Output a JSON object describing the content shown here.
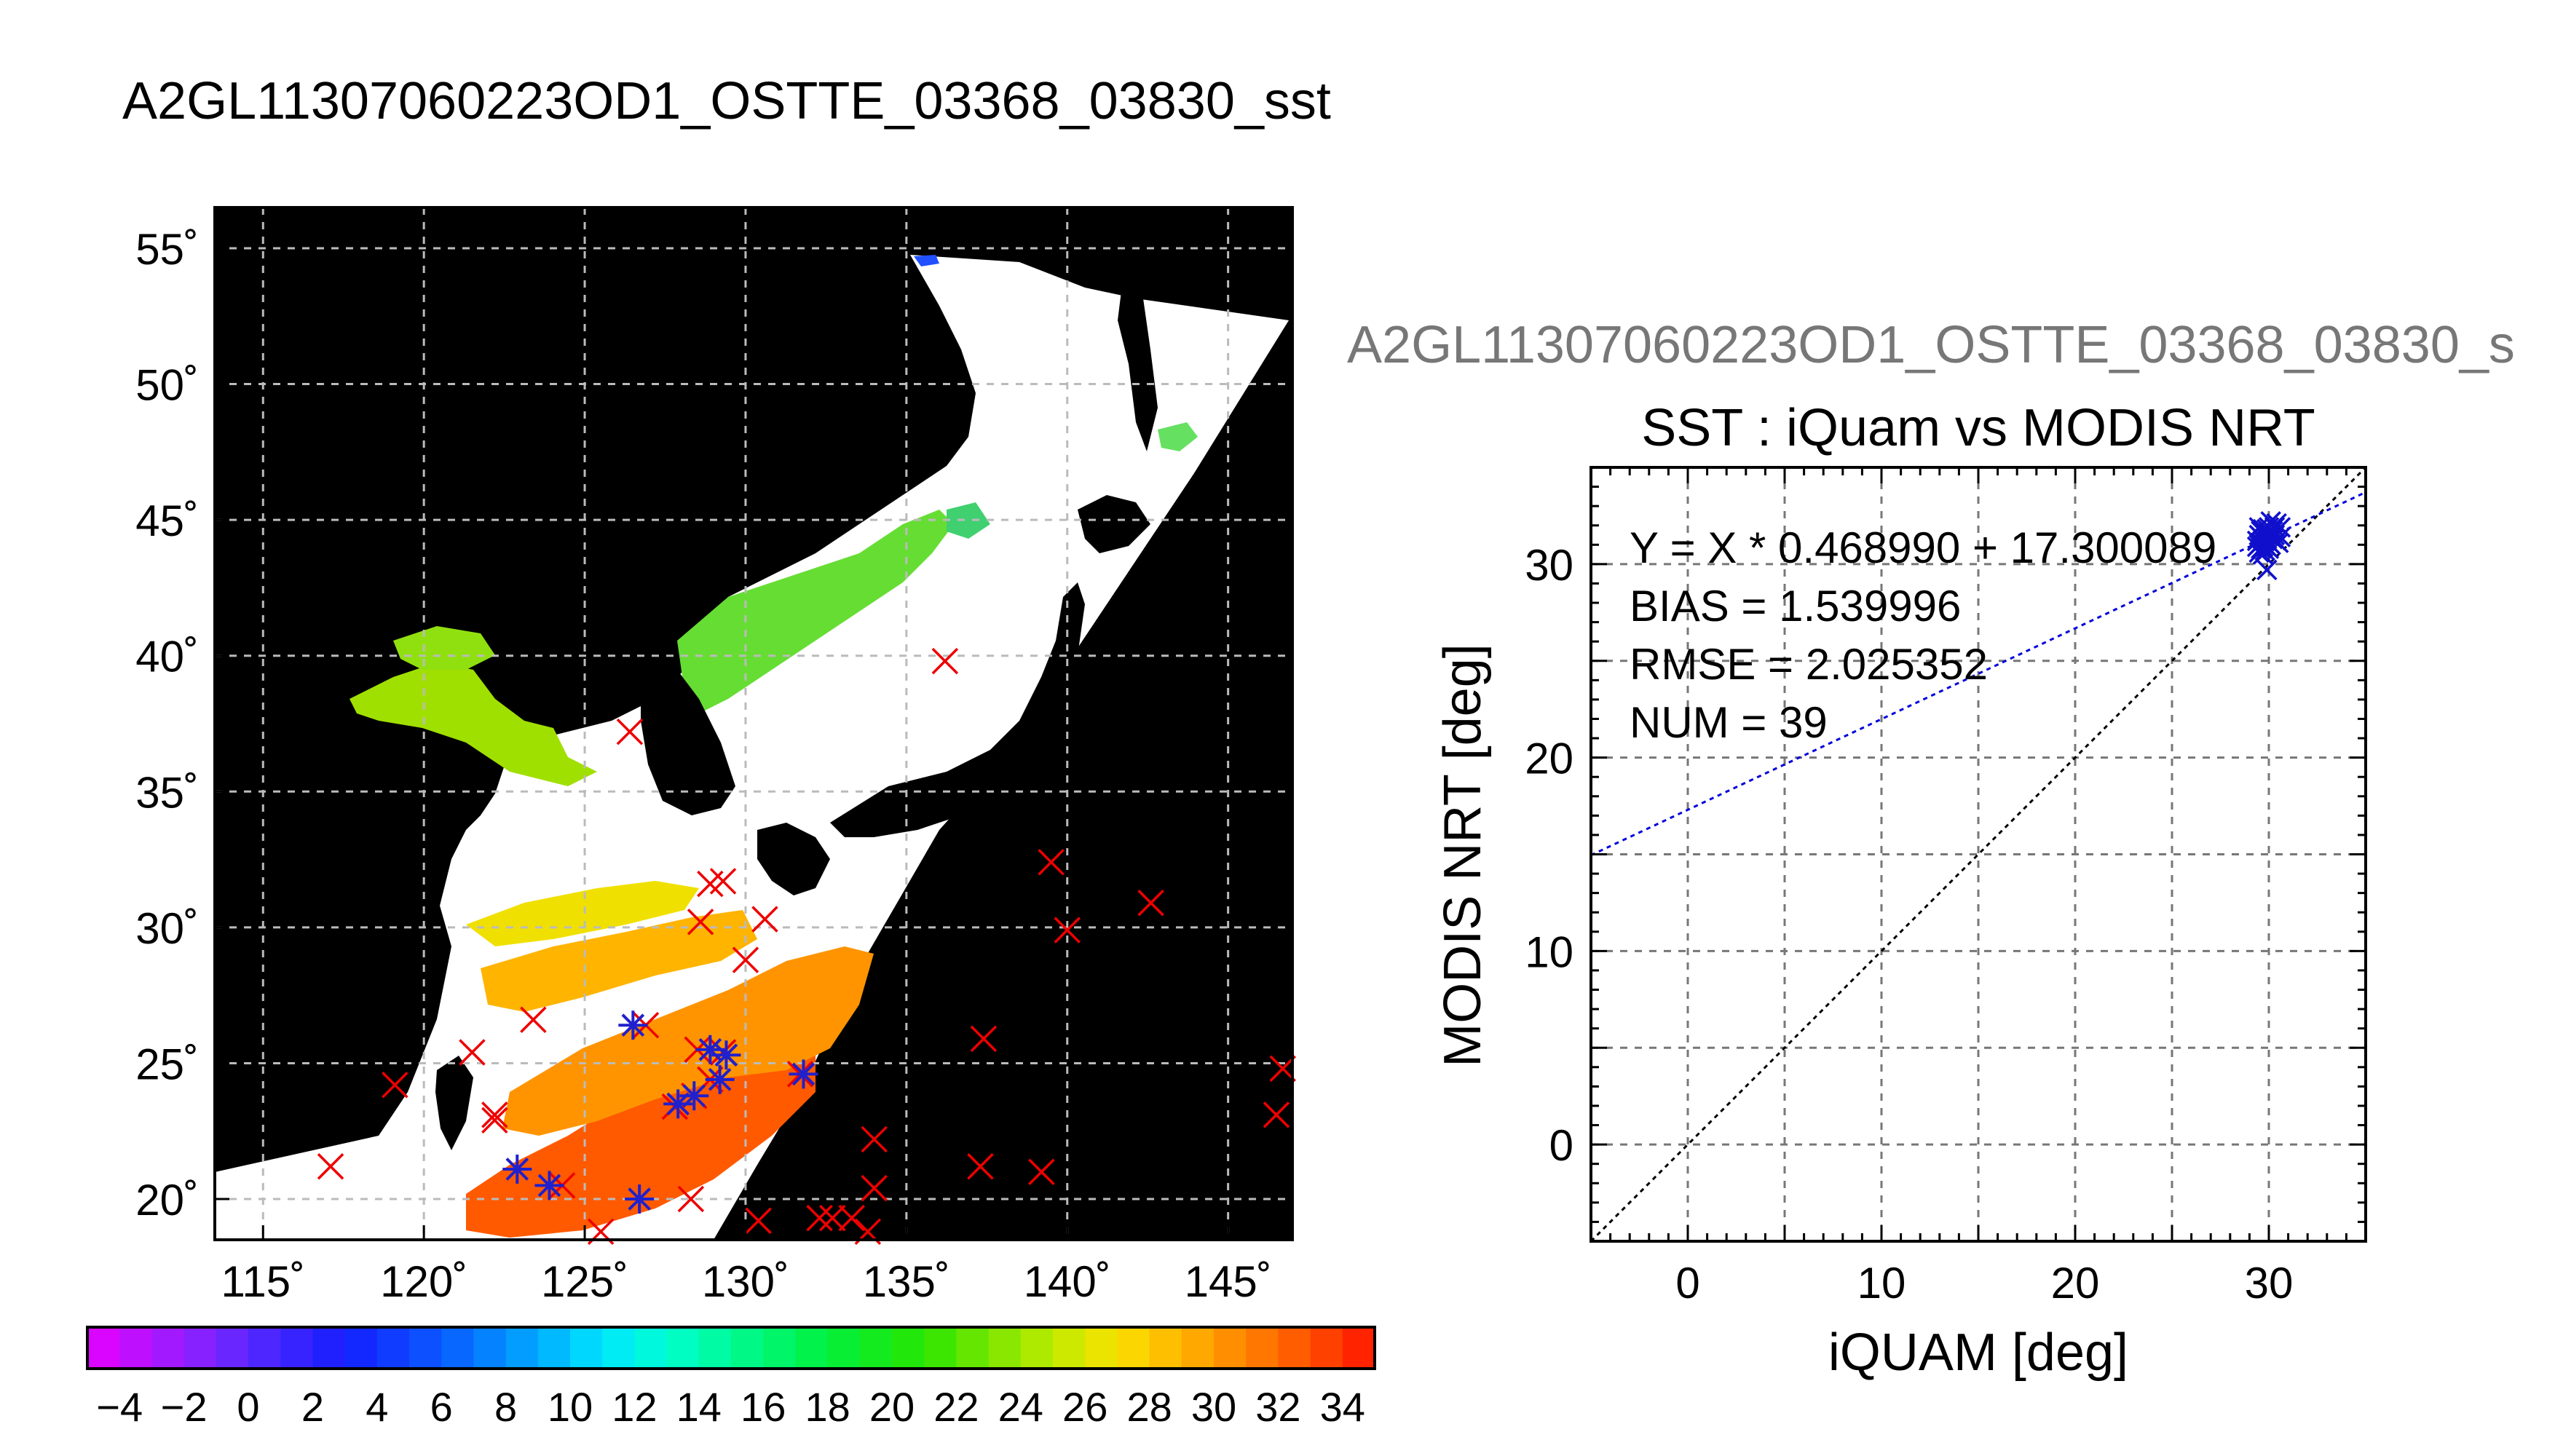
{
  "page": {
    "main_title": "A2GL11307060223OD1_OSTTE_03368_03830_sst",
    "secondary_title": "A2GL11307060223OD1_OSTTE_03368_03830_s"
  },
  "chart_data": [
    {
      "type": "map",
      "title": "A2GL11307060223OD1_OSTTE_03368_03830_sst",
      "lon_range": [
        113.5,
        147.0
      ],
      "lat_range": [
        18.5,
        56.5
      ],
      "lon_ticks": [
        115,
        120,
        125,
        130,
        135,
        140,
        145
      ],
      "lon_tick_labels": [
        "115˚",
        "120˚",
        "125˚",
        "130˚",
        "135˚",
        "140˚",
        "145˚"
      ],
      "lat_ticks": [
        20,
        25,
        30,
        35,
        40,
        45,
        50,
        55
      ],
      "lat_tick_labels": [
        "20˚",
        "25˚",
        "30˚",
        "35˚",
        "40˚",
        "45˚",
        "50˚",
        "55˚"
      ],
      "grid": true,
      "colorbar": {
        "min": -5,
        "max": 35,
        "tick_values": [
          -4,
          -2,
          0,
          2,
          4,
          6,
          8,
          10,
          12,
          14,
          16,
          18,
          20,
          22,
          24,
          26,
          28,
          30,
          32,
          34
        ],
        "tick_labels": [
          "−4",
          "−2",
          "0",
          "2",
          "4",
          "6",
          "8",
          "10",
          "12",
          "14",
          "16",
          "18",
          "20",
          "22",
          "24",
          "26",
          "28",
          "30",
          "32",
          "34"
        ]
      },
      "insitu_points_red_x": [
        [
          117.1,
          21.2
        ],
        [
          119.1,
          24.2
        ],
        [
          121.5,
          25.4
        ],
        [
          122.2,
          22.9
        ],
        [
          122.2,
          23.1
        ],
        [
          123.4,
          26.6
        ],
        [
          124.3,
          20.5
        ],
        [
          125.5,
          18.8
        ],
        [
          126.4,
          37.2
        ],
        [
          126.9,
          26.4
        ],
        [
          127.8,
          23.4
        ],
        [
          128.3,
          20.0
        ],
        [
          128.4,
          23.8
        ],
        [
          128.6,
          30.2
        ],
        [
          128.9,
          31.6
        ],
        [
          128.5,
          25.5
        ],
        [
          129.3,
          25.4
        ],
        [
          128.9,
          24.4
        ],
        [
          129.3,
          31.7
        ],
        [
          130.0,
          28.8
        ],
        [
          130.4,
          19.2
        ],
        [
          130.6,
          30.3
        ],
        [
          131.7,
          24.6
        ],
        [
          132.3,
          19.3
        ],
        [
          132.7,
          19.3
        ],
        [
          133.3,
          19.3
        ],
        [
          133.8,
          18.8
        ],
        [
          134.0,
          22.2
        ],
        [
          134.0,
          20.4
        ],
        [
          136.2,
          39.8
        ],
        [
          137.3,
          21.2
        ],
        [
          137.4,
          25.9
        ],
        [
          139.2,
          21.0
        ],
        [
          139.5,
          32.4
        ],
        [
          140.0,
          29.9
        ],
        [
          142.6,
          30.9
        ],
        [
          146.5,
          23.1
        ],
        [
          146.7,
          24.8
        ]
      ],
      "matched_points_blue_star": [
        [
          122.9,
          21.1
        ],
        [
          123.9,
          20.5
        ],
        [
          126.5,
          26.4
        ],
        [
          126.7,
          20.0
        ],
        [
          127.9,
          23.5
        ],
        [
          128.4,
          23.8
        ],
        [
          128.9,
          25.5
        ],
        [
          129.2,
          24.4
        ],
        [
          129.4,
          25.3
        ],
        [
          131.8,
          24.6
        ]
      ]
    },
    {
      "type": "scatter",
      "title": "SST : iQuam vs MODIS NRT",
      "xlabel": "iQUAM [deg]",
      "ylabel": "MODIS NRT [deg]",
      "xlim": [
        -5,
        35
      ],
      "ylim": [
        -5,
        35
      ],
      "x_ticks": [
        0,
        10,
        20,
        30
      ],
      "y_ticks": [
        0,
        10,
        20,
        30
      ],
      "grid": true,
      "annotations": [
        "Y = X * 0.468990 + 17.300089",
        "BIAS = 1.539996",
        "RMSE = 2.025352",
        "NUM = 39"
      ],
      "fit": {
        "slope": 0.46899,
        "intercept": 17.300089
      },
      "identity_line": true,
      "points": [
        [
          29.5,
          31.0
        ],
        [
          29.6,
          31.4
        ],
        [
          29.7,
          30.9
        ],
        [
          29.8,
          31.2
        ],
        [
          29.9,
          31.6
        ],
        [
          30.0,
          31.1
        ],
        [
          29.5,
          31.5
        ],
        [
          29.7,
          31.8
        ],
        [
          29.8,
          30.7
        ],
        [
          29.9,
          31.3
        ],
        [
          30.0,
          31.5
        ],
        [
          30.1,
          31.0
        ],
        [
          29.6,
          30.8
        ],
        [
          29.7,
          31.2
        ],
        [
          29.8,
          31.7
        ],
        [
          29.9,
          30.9
        ],
        [
          30.0,
          31.9
        ],
        [
          30.1,
          31.4
        ],
        [
          29.4,
          31.2
        ],
        [
          29.5,
          30.6
        ],
        [
          29.6,
          31.7
        ],
        [
          29.7,
          30.5
        ],
        [
          29.8,
          31.0
        ],
        [
          29.9,
          31.8
        ],
        [
          30.0,
          30.8
        ],
        [
          30.2,
          31.3
        ],
        [
          30.2,
          31.7
        ],
        [
          30.3,
          31.5
        ],
        [
          30.4,
          32.1
        ],
        [
          30.3,
          31.9
        ],
        [
          30.5,
          31.1
        ],
        [
          30.6,
          31.4
        ],
        [
          29.5,
          31.9
        ],
        [
          29.6,
          31.1
        ],
        [
          29.9,
          29.7
        ],
        [
          30.1,
          32.2
        ],
        [
          30.6,
          31.9
        ],
        [
          29.4,
          30.9
        ],
        [
          30.0,
          31.6
        ]
      ]
    }
  ]
}
